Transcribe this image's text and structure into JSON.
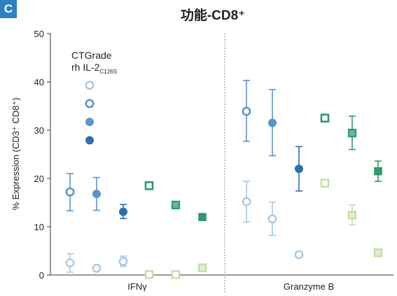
{
  "panel_label": "C",
  "colors": {
    "blue_dark": "#2e6fae",
    "blue_mid": "#5b95c9",
    "blue_light": "#a9c8e3",
    "green_dark": "#2e9a6d",
    "green_mid": "#6db58e",
    "green_light": "#c3dca6",
    "axis": "#333333",
    "divider": "#888888"
  },
  "chart_data": {
    "type": "scatter",
    "title": "功能-CD8⁺",
    "ylabel": "% Expression (CD3⁺ CD8⁺)",
    "ylim": [
      0,
      50
    ],
    "yticks": [
      "0",
      "10",
      "20",
      "30",
      "40",
      "50"
    ],
    "categories": [
      "IFNγ",
      "Granzyme B"
    ],
    "legend": {
      "line1": "CTGrade",
      "line2_main": "rh IL-2",
      "line2_sub": "C126S",
      "markers": [
        {
          "style": "ring-light",
          "value": 39.3
        },
        {
          "style": "ring-mid",
          "value": 35.5
        },
        {
          "style": "fill-mid",
          "value": 31.7
        },
        {
          "style": "fill-dark",
          "value": 27.9
        }
      ]
    },
    "series": [
      {
        "category": "IFNγ",
        "shape": "circle",
        "style": "ring-mid",
        "y": 17.2,
        "yerr_low": 13.3,
        "yerr_high": 21.0
      },
      {
        "category": "IFNγ",
        "shape": "circle",
        "style": "fill-mid",
        "y": 16.8,
        "yerr_low": 13.4,
        "yerr_high": 20.2
      },
      {
        "category": "IFNγ",
        "shape": "circle",
        "style": "fill-dark",
        "y": 13.1,
        "yerr_low": 11.7,
        "yerr_high": 14.6
      },
      {
        "category": "IFNγ",
        "shape": "circle",
        "style": "ring-light",
        "y": 2.5,
        "yerr_low": 0.6,
        "yerr_high": 4.4
      },
      {
        "category": "IFNγ",
        "shape": "circle",
        "style": "ring-light",
        "y": 1.4,
        "yerr_low": null,
        "yerr_high": null
      },
      {
        "category": "IFNγ",
        "shape": "circle",
        "style": "ring-light",
        "y": 2.8,
        "yerr_low": 1.8,
        "yerr_high": 3.9
      },
      {
        "category": "IFNγ",
        "shape": "square",
        "style": "green-ring-mid",
        "y": 18.5,
        "yerr_low": null,
        "yerr_high": null
      },
      {
        "category": "IFNγ",
        "shape": "square",
        "style": "green-fill-mid",
        "y": 14.5,
        "yerr_low": null,
        "yerr_high": null
      },
      {
        "category": "IFNγ",
        "shape": "square",
        "style": "green-fill-dark",
        "y": 12.0,
        "yerr_low": null,
        "yerr_high": null
      },
      {
        "category": "IFNγ",
        "shape": "square",
        "style": "green-ring-light",
        "y": 0.1,
        "yerr_low": null,
        "yerr_high": null
      },
      {
        "category": "IFNγ",
        "shape": "square",
        "style": "green-ring-light",
        "y": 0.1,
        "yerr_low": null,
        "yerr_high": null
      },
      {
        "category": "IFNγ",
        "shape": "square",
        "style": "green-fill-light",
        "y": 1.5,
        "yerr_low": null,
        "yerr_high": null
      },
      {
        "category": "Granzyme B",
        "shape": "circle",
        "style": "ring-mid",
        "y": 33.9,
        "yerr_low": 27.7,
        "yerr_high": 40.3
      },
      {
        "category": "Granzyme B",
        "shape": "circle",
        "style": "fill-mid",
        "y": 31.5,
        "yerr_low": 24.7,
        "yerr_high": 38.4
      },
      {
        "category": "Granzyme B",
        "shape": "circle",
        "style": "fill-dark",
        "y": 22.0,
        "yerr_low": 17.4,
        "yerr_high": 26.6
      },
      {
        "category": "Granzyme B",
        "shape": "circle",
        "style": "ring-light",
        "y": 15.2,
        "yerr_low": 11.0,
        "yerr_high": 19.4
      },
      {
        "category": "Granzyme B",
        "shape": "circle",
        "style": "ring-light",
        "y": 11.6,
        "yerr_low": 8.2,
        "yerr_high": 15.1
      },
      {
        "category": "Granzyme B",
        "shape": "circle",
        "style": "ring-light",
        "y": 4.2,
        "yerr_low": null,
        "yerr_high": null
      },
      {
        "category": "Granzyme B",
        "shape": "square",
        "style": "green-ring-mid",
        "y": 32.5,
        "yerr_low": null,
        "yerr_high": null
      },
      {
        "category": "Granzyme B",
        "shape": "square",
        "style": "green-fill-mid",
        "y": 29.4,
        "yerr_low": 26.0,
        "yerr_high": 32.9
      },
      {
        "category": "Granzyme B",
        "shape": "square",
        "style": "green-fill-dark",
        "y": 21.5,
        "yerr_low": 19.4,
        "yerr_high": 23.6
      },
      {
        "category": "Granzyme B",
        "shape": "square",
        "style": "green-ring-light",
        "y": 19.0,
        "yerr_low": null,
        "yerr_high": null
      },
      {
        "category": "Granzyme B",
        "shape": "square",
        "style": "green-fill-light",
        "y": 12.4,
        "yerr_low": 10.4,
        "yerr_high": 14.5
      },
      {
        "category": "Granzyme B",
        "shape": "square",
        "style": "green-fill-light",
        "y": 4.6,
        "yerr_low": null,
        "yerr_high": null
      }
    ]
  }
}
